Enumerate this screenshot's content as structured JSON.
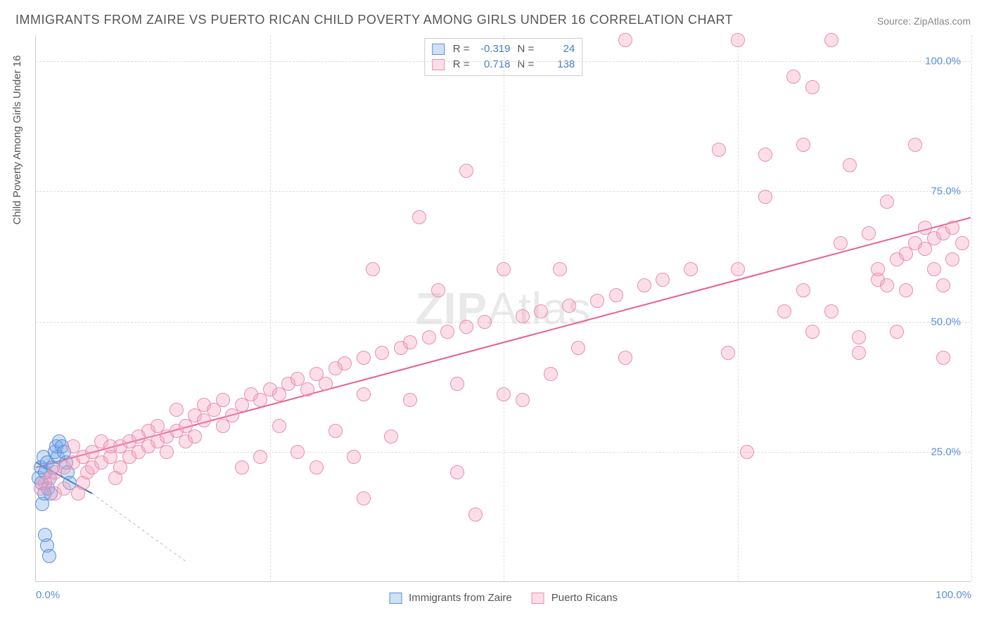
{
  "title": "IMMIGRANTS FROM ZAIRE VS PUERTO RICAN CHILD POVERTY AMONG GIRLS UNDER 16 CORRELATION CHART",
  "source": "Source: ZipAtlas.com",
  "ylabel": "Child Poverty Among Girls Under 16",
  "watermark_a": "ZIP",
  "watermark_b": "Atlas",
  "chart": {
    "type": "scatter",
    "xlim": [
      0,
      100
    ],
    "ylim": [
      0,
      105
    ],
    "xticks": [
      0,
      100
    ],
    "xtick_labels": [
      "0.0%",
      "100.0%"
    ],
    "yticks": [
      25,
      50,
      75,
      100
    ],
    "ytick_labels": [
      "25.0%",
      "50.0%",
      "75.0%",
      "100.0%"
    ],
    "grid_v": [
      25,
      50,
      75,
      100
    ],
    "grid_color": "#dddddd",
    "background_color": "#ffffff",
    "point_radius": 10,
    "point_border_width": 1,
    "series": [
      {
        "name": "Immigrants from Zaire",
        "fill_color": "rgba(120,170,230,0.35)",
        "stroke_color": "#5b8fd9",
        "R": "-0.319",
        "N": "24",
        "trend": {
          "x1": 0,
          "y1": 23,
          "x2": 6,
          "y2": 17,
          "dash_extend": {
            "x2": 16,
            "y2": 4
          },
          "color": "#2e6bc0",
          "width": 2
        },
        "points": [
          [
            0.3,
            20
          ],
          [
            0.5,
            22
          ],
          [
            0.6,
            19
          ],
          [
            0.8,
            24
          ],
          [
            1.0,
            21
          ],
          [
            1.2,
            23
          ],
          [
            1.3,
            18
          ],
          [
            1.5,
            20
          ],
          [
            1.6,
            17
          ],
          [
            1.8,
            22
          ],
          [
            2.0,
            25
          ],
          [
            2.2,
            26
          ],
          [
            2.3,
            24
          ],
          [
            2.5,
            27
          ],
          [
            2.8,
            26
          ],
          [
            3.0,
            25
          ],
          [
            3.2,
            23
          ],
          [
            3.4,
            21
          ],
          [
            3.6,
            19
          ],
          [
            1.0,
            9
          ],
          [
            1.2,
            7
          ],
          [
            1.4,
            5
          ],
          [
            0.7,
            15
          ],
          [
            0.9,
            17
          ]
        ]
      },
      {
        "name": "Puerto Ricans",
        "fill_color": "rgba(245,160,190,0.35)",
        "stroke_color": "#e88fb0",
        "R": "0.718",
        "N": "138",
        "trend": {
          "x1": 0,
          "y1": 22,
          "x2": 100,
          "y2": 70,
          "color": "#e95d8e",
          "width": 2
        },
        "points": [
          [
            0.5,
            18
          ],
          [
            1,
            19
          ],
          [
            1.5,
            20
          ],
          [
            2,
            17
          ],
          [
            2,
            21
          ],
          [
            3,
            22
          ],
          [
            3,
            18
          ],
          [
            4,
            23
          ],
          [
            4,
            26
          ],
          [
            4.5,
            17
          ],
          [
            5,
            19
          ],
          [
            5,
            24
          ],
          [
            5.5,
            21
          ],
          [
            6,
            22
          ],
          [
            6,
            25
          ],
          [
            7,
            27
          ],
          [
            7,
            23
          ],
          [
            8,
            24
          ],
          [
            8,
            26
          ],
          [
            8.5,
            20
          ],
          [
            9,
            26
          ],
          [
            9,
            22
          ],
          [
            10,
            27
          ],
          [
            10,
            24
          ],
          [
            11,
            28
          ],
          [
            11,
            25
          ],
          [
            12,
            29
          ],
          [
            12,
            26
          ],
          [
            13,
            30
          ],
          [
            13,
            27
          ],
          [
            14,
            28
          ],
          [
            14,
            25
          ],
          [
            15,
            29
          ],
          [
            15,
            33
          ],
          [
            16,
            30
          ],
          [
            16,
            27
          ],
          [
            17,
            32
          ],
          [
            17,
            28
          ],
          [
            18,
            31
          ],
          [
            18,
            34
          ],
          [
            19,
            33
          ],
          [
            20,
            35
          ],
          [
            20,
            30
          ],
          [
            21,
            32
          ],
          [
            22,
            34
          ],
          [
            22,
            22
          ],
          [
            23,
            36
          ],
          [
            24,
            35
          ],
          [
            24,
            24
          ],
          [
            25,
            37
          ],
          [
            26,
            36
          ],
          [
            26,
            30
          ],
          [
            27,
            38
          ],
          [
            28,
            25
          ],
          [
            28,
            39
          ],
          [
            29,
            37
          ],
          [
            30,
            40
          ],
          [
            30,
            22
          ],
          [
            31,
            38
          ],
          [
            32,
            41
          ],
          [
            32,
            29
          ],
          [
            33,
            42
          ],
          [
            34,
            24
          ],
          [
            35,
            43
          ],
          [
            35,
            36
          ],
          [
            35,
            16
          ],
          [
            36,
            60
          ],
          [
            37,
            44
          ],
          [
            38,
            28
          ],
          [
            39,
            45
          ],
          [
            40,
            46
          ],
          [
            40,
            35
          ],
          [
            41,
            70
          ],
          [
            42,
            47
          ],
          [
            43,
            56
          ],
          [
            44,
            48
          ],
          [
            45,
            38
          ],
          [
            45,
            21
          ],
          [
            46,
            49
          ],
          [
            46,
            79
          ],
          [
            47,
            13
          ],
          [
            48,
            50
          ],
          [
            50,
            36
          ],
          [
            50,
            60
          ],
          [
            52,
            51
          ],
          [
            52,
            35
          ],
          [
            54,
            52
          ],
          [
            55,
            40
          ],
          [
            56,
            60
          ],
          [
            57,
            53
          ],
          [
            58,
            45
          ],
          [
            60,
            54
          ],
          [
            62,
            55
          ],
          [
            63,
            104
          ],
          [
            63,
            43
          ],
          [
            65,
            57
          ],
          [
            67,
            58
          ],
          [
            70,
            60
          ],
          [
            73,
            83
          ],
          [
            74,
            44
          ],
          [
            75,
            104
          ],
          [
            75,
            60
          ],
          [
            76,
            25
          ],
          [
            78,
            74
          ],
          [
            78,
            82
          ],
          [
            80,
            52
          ],
          [
            81,
            97
          ],
          [
            82,
            56
          ],
          [
            82,
            84
          ],
          [
            83,
            95
          ],
          [
            83,
            48
          ],
          [
            85,
            52
          ],
          [
            85,
            104
          ],
          [
            86,
            65
          ],
          [
            87,
            80
          ],
          [
            88,
            47
          ],
          [
            88,
            44
          ],
          [
            89,
            67
          ],
          [
            90,
            60
          ],
          [
            90,
            58
          ],
          [
            91,
            57
          ],
          [
            91,
            73
          ],
          [
            92,
            62
          ],
          [
            92,
            48
          ],
          [
            93,
            63
          ],
          [
            93,
            56
          ],
          [
            94,
            65
          ],
          [
            94,
            84
          ],
          [
            95,
            64
          ],
          [
            95,
            68
          ],
          [
            96,
            66
          ],
          [
            96,
            60
          ],
          [
            97,
            67
          ],
          [
            97,
            57
          ],
          [
            97,
            43
          ],
          [
            98,
            68
          ],
          [
            98,
            62
          ],
          [
            99,
            65
          ]
        ]
      }
    ]
  },
  "legend_bottom": {
    "series1_label": "Immigrants from Zaire",
    "series2_label": "Puerto Ricans"
  }
}
